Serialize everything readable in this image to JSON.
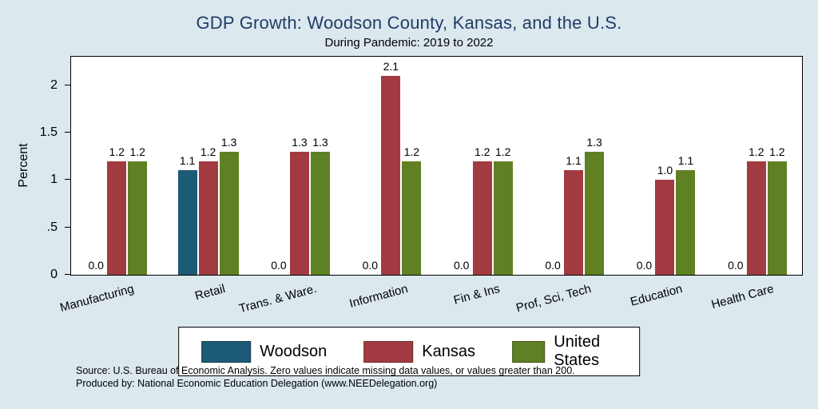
{
  "footer": {
    "line1": "Source: U.S. Bureau of Economic Analysis. Zero values indicate missing data values, or values greater than 200.",
    "line2": "Produced by: National Economic Education Delegation (www.NEEDelegation.org)"
  },
  "colors": {
    "background": "#dbe8ee",
    "plot_background": "#ffffff",
    "title_text": "#1f3d66",
    "woodson": "#1d5a75",
    "kansas": "#a23b41",
    "united_states": "#5f8023"
  },
  "chart_data": {
    "type": "bar",
    "title": "GDP Growth: Woodson County, Kansas, and the U.S.",
    "subtitle": "During Pandemic: 2019 to 2022",
    "xlabel": "",
    "ylabel": "Percent",
    "ylim": [
      0,
      2.3
    ],
    "grid": false,
    "legend_position": "bottom",
    "value_labels": "one-decimal",
    "yticks": [
      {
        "label": "0",
        "value": 0
      },
      {
        "label": ".5",
        "value": 0.5
      },
      {
        "label": "1",
        "value": 1
      },
      {
        "label": "1.5",
        "value": 1.5
      },
      {
        "label": "2",
        "value": 2
      }
    ],
    "categories": [
      "Manufacturing",
      "Retail",
      "Trans. & Ware.",
      "Information",
      "Fin & Ins",
      "Prof, Sci, Tech",
      "Education",
      "Health Care"
    ],
    "series": [
      {
        "name": "Woodson",
        "color": "#1d5a75",
        "values": [
          0.0,
          1.1,
          0.0,
          0.0,
          0.0,
          0.0,
          0.0,
          0.0
        ]
      },
      {
        "name": "Kansas",
        "color": "#a23b41",
        "values": [
          1.2,
          1.2,
          1.3,
          2.1,
          1.2,
          1.1,
          1.0,
          1.2
        ]
      },
      {
        "name": "United States",
        "color": "#5f8023",
        "values": [
          1.2,
          1.3,
          1.3,
          1.2,
          1.2,
          1.3,
          1.1,
          1.2
        ]
      }
    ]
  }
}
